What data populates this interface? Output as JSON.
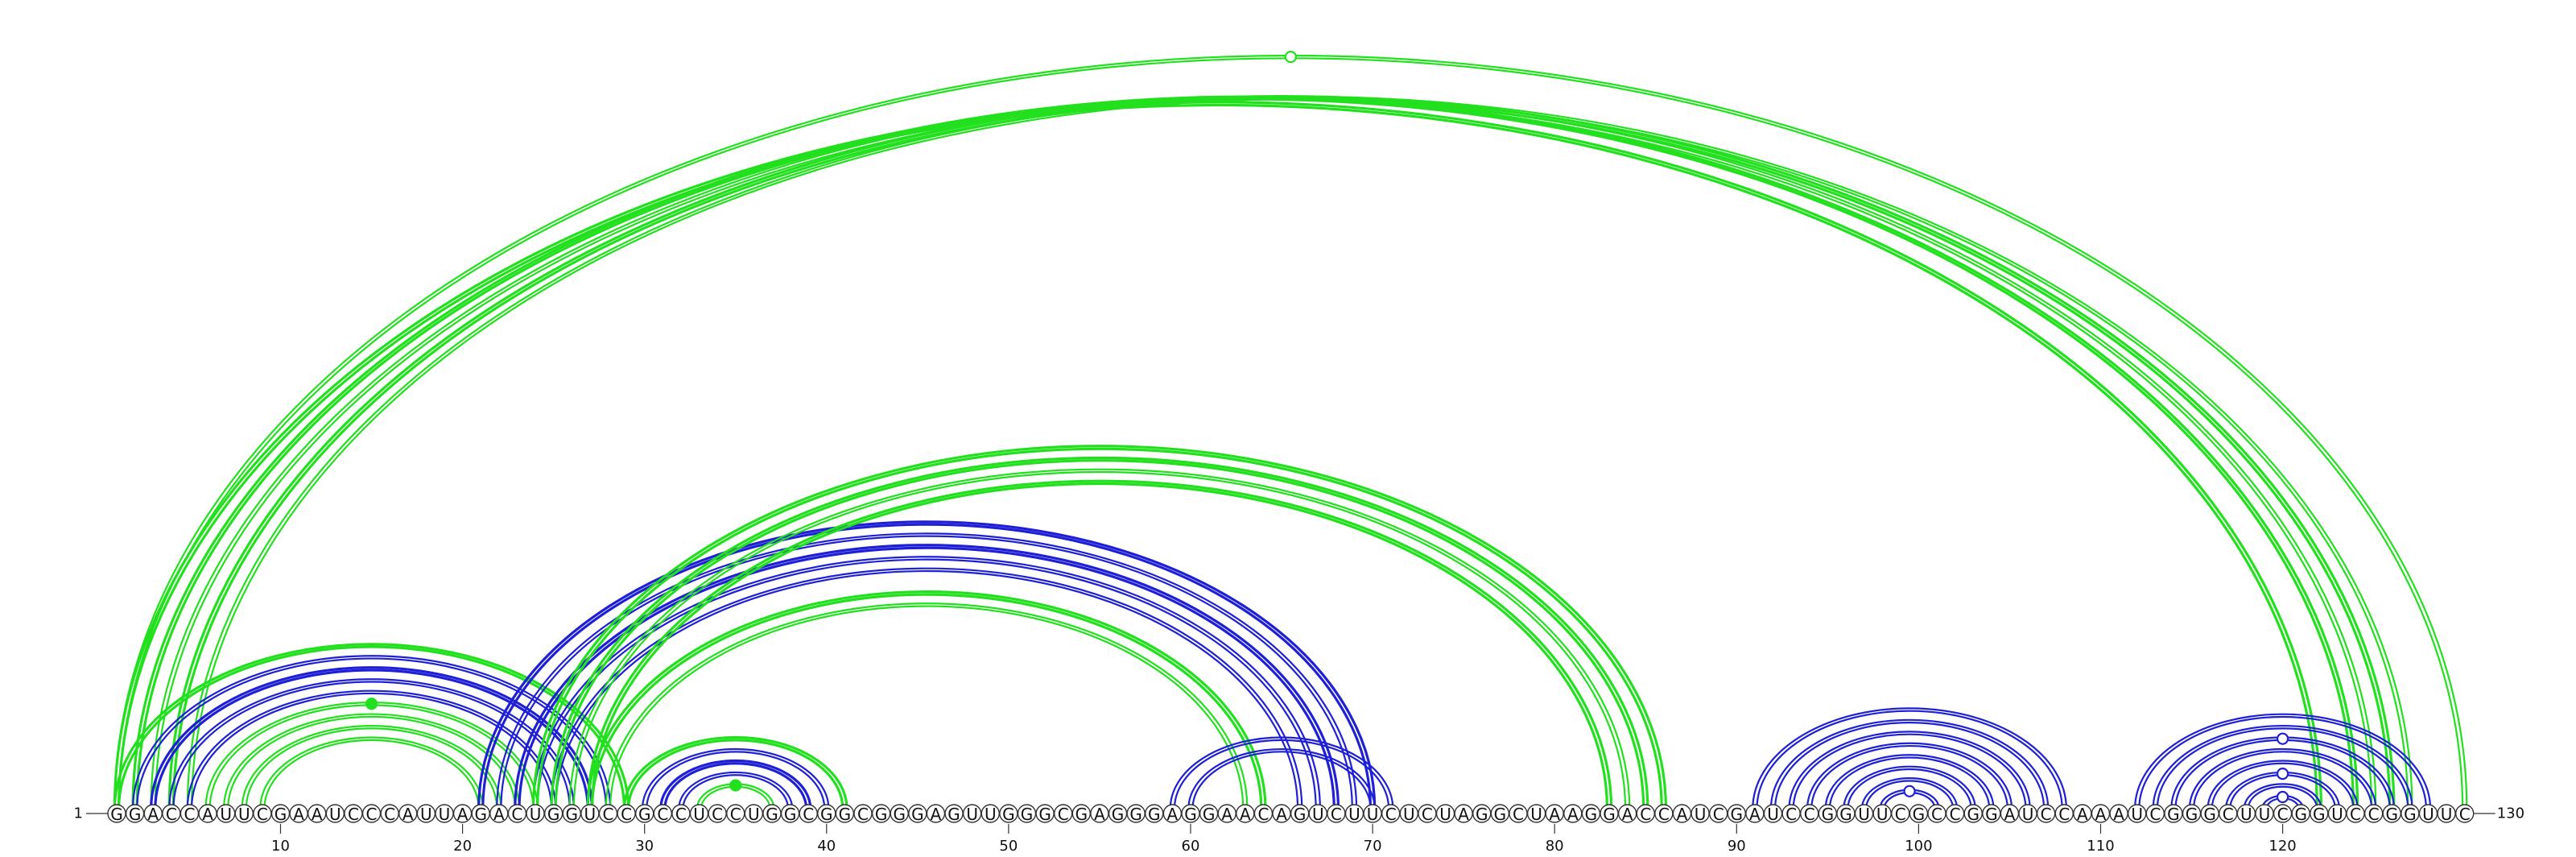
{
  "sequence": "GGACCAUUCGAAUCCCAUUAGACUGGUCCGCCUCCUGGCGGCGGGAGUUGGGCGAGGGAGGAACAGUCUUCUCUAGGCUAAGGACCAUCGAUCCGGUUCGCCGGAUCCAAAUCGGGCUUCGGUCCGGUUC",
  "start_label": "1",
  "end_label": "130",
  "ticks": [
    10,
    20,
    30,
    40,
    50,
    60,
    70,
    80,
    90,
    100,
    110,
    120
  ],
  "colors": {
    "green": "#22e01e",
    "blue": "#1f1fd6",
    "backbone": "#333333"
  },
  "arcs": [
    {
      "i": 1,
      "j": 122,
      "color": "green",
      "double": true,
      "thick": true,
      "marker": "none"
    },
    {
      "i": 2,
      "j": 124,
      "color": "green",
      "double": true,
      "thick": true,
      "marker": "none"
    },
    {
      "i": 3,
      "j": 125,
      "color": "green",
      "double": true,
      "thick": false,
      "marker": "none"
    },
    {
      "i": 4,
      "j": 126,
      "color": "green",
      "double": true,
      "thick": true,
      "marker": "none"
    },
    {
      "i": 5,
      "j": 127,
      "color": "green",
      "double": true,
      "thick": false,
      "marker": "none"
    },
    {
      "i": 1,
      "j": 130,
      "color": "green",
      "double": true,
      "thick": false,
      "marker": "open"
    },
    {
      "i": 1,
      "j": 29,
      "color": "green",
      "double": true,
      "thick": true,
      "marker": "none"
    },
    {
      "i": 2,
      "j": 28,
      "color": "blue",
      "double": true,
      "thick": false,
      "marker": "none"
    },
    {
      "i": 3,
      "j": 27,
      "color": "blue",
      "double": true,
      "thick": true,
      "marker": "none"
    },
    {
      "i": 4,
      "j": 26,
      "color": "blue",
      "double": true,
      "thick": false,
      "marker": "none"
    },
    {
      "i": 5,
      "j": 25,
      "color": "blue",
      "double": true,
      "thick": false,
      "marker": "none"
    },
    {
      "i": 6,
      "j": 24,
      "color": "green",
      "double": true,
      "thick": false,
      "marker": "filled"
    },
    {
      "i": 7,
      "j": 23,
      "color": "green",
      "double": true,
      "thick": false,
      "marker": "none"
    },
    {
      "i": 8,
      "j": 22,
      "color": "green",
      "double": true,
      "thick": false,
      "marker": "none"
    },
    {
      "i": 9,
      "j": 21,
      "color": "green",
      "double": true,
      "thick": false,
      "marker": "none"
    },
    {
      "i": 21,
      "j": 70,
      "color": "blue",
      "double": true,
      "thick": true,
      "marker": "none"
    },
    {
      "i": 22,
      "j": 69,
      "color": "blue",
      "double": true,
      "thick": false,
      "marker": "none"
    },
    {
      "i": 23,
      "j": 68,
      "color": "blue",
      "double": true,
      "thick": true,
      "marker": "none"
    },
    {
      "i": 24,
      "j": 67,
      "color": "blue",
      "double": true,
      "thick": false,
      "marker": "none"
    },
    {
      "i": 25,
      "j": 66,
      "color": "blue",
      "double": true,
      "thick": false,
      "marker": "none"
    },
    {
      "i": 24,
      "j": 86,
      "color": "green",
      "double": true,
      "thick": true,
      "marker": "none"
    },
    {
      "i": 25,
      "j": 85,
      "color": "green",
      "double": true,
      "thick": true,
      "marker": "none"
    },
    {
      "i": 26,
      "j": 84,
      "color": "green",
      "double": true,
      "thick": false,
      "marker": "none"
    },
    {
      "i": 27,
      "j": 83,
      "color": "green",
      "double": true,
      "thick": true,
      "marker": "none"
    },
    {
      "i": 27,
      "j": 64,
      "color": "green",
      "double": true,
      "thick": true,
      "marker": "none"
    },
    {
      "i": 28,
      "j": 63,
      "color": "green",
      "double": true,
      "thick": false,
      "marker": "none"
    },
    {
      "i": 29,
      "j": 41,
      "color": "green",
      "double": true,
      "thick": true,
      "marker": "none"
    },
    {
      "i": 30,
      "j": 40,
      "color": "blue",
      "double": true,
      "thick": false,
      "marker": "none"
    },
    {
      "i": 31,
      "j": 39,
      "color": "blue",
      "double": true,
      "thick": true,
      "marker": "none"
    },
    {
      "i": 32,
      "j": 38,
      "color": "blue",
      "double": true,
      "thick": false,
      "marker": "none"
    },
    {
      "i": 33,
      "j": 37,
      "color": "green",
      "double": true,
      "thick": false,
      "marker": "filled"
    },
    {
      "i": 59,
      "j": 71,
      "color": "blue",
      "double": true,
      "thick": false,
      "marker": "none"
    },
    {
      "i": 60,
      "j": 70,
      "color": "blue",
      "double": true,
      "thick": false,
      "marker": "none"
    },
    {
      "i": 91,
      "j": 108,
      "color": "blue",
      "double": true,
      "thick": false,
      "marker": "none"
    },
    {
      "i": 92,
      "j": 107,
      "color": "blue",
      "double": true,
      "thick": false,
      "marker": "none"
    },
    {
      "i": 93,
      "j": 106,
      "color": "blue",
      "double": true,
      "thick": false,
      "marker": "none"
    },
    {
      "i": 94,
      "j": 105,
      "color": "blue",
      "double": true,
      "thick": false,
      "marker": "none"
    },
    {
      "i": 95,
      "j": 104,
      "color": "blue",
      "double": true,
      "thick": false,
      "marker": "none"
    },
    {
      "i": 96,
      "j": 103,
      "color": "blue",
      "double": true,
      "thick": false,
      "marker": "none"
    },
    {
      "i": 97,
      "j": 102,
      "color": "blue",
      "double": true,
      "thick": false,
      "marker": "none"
    },
    {
      "i": 98,
      "j": 101,
      "color": "blue",
      "double": true,
      "thick": false,
      "marker": "open"
    },
    {
      "i": 112,
      "j": 128,
      "color": "blue",
      "double": true,
      "thick": false,
      "marker": "none"
    },
    {
      "i": 113,
      "j": 127,
      "color": "blue",
      "double": true,
      "thick": false,
      "marker": "none"
    },
    {
      "i": 114,
      "j": 126,
      "color": "blue",
      "double": true,
      "thick": false,
      "marker": "open"
    },
    {
      "i": 115,
      "j": 125,
      "color": "blue",
      "double": true,
      "thick": false,
      "marker": "none"
    },
    {
      "i": 116,
      "j": 124,
      "color": "blue",
      "double": true,
      "thick": false,
      "marker": "none"
    },
    {
      "i": 117,
      "j": 123,
      "color": "blue",
      "double": true,
      "thick": false,
      "marker": "open"
    },
    {
      "i": 118,
      "j": 122,
      "color": "blue",
      "double": true,
      "thick": false,
      "marker": "none"
    },
    {
      "i": 119,
      "j": 121,
      "color": "blue",
      "double": true,
      "thick": false,
      "marker": "open"
    }
  ]
}
